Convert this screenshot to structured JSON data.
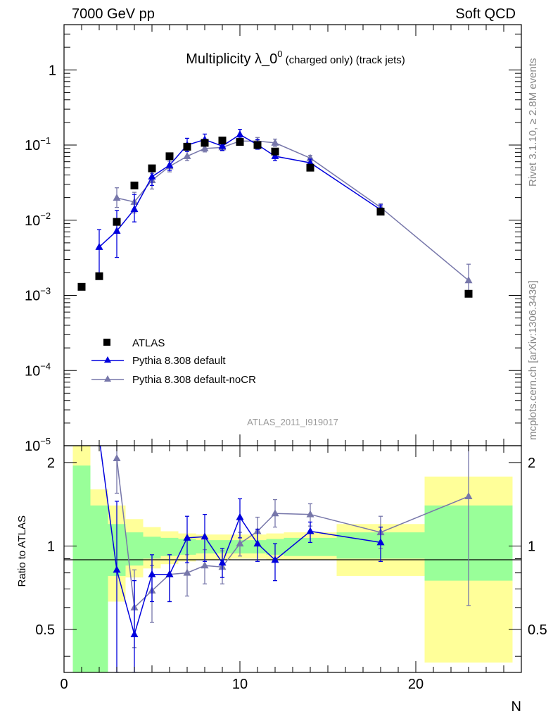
{
  "header": {
    "left": "7000 GeV pp",
    "right": "Soft QCD"
  },
  "side_text": {
    "rivet": "Rivet 3.1.10, ≥ 2.8M events",
    "mcplots": "mcplots.cern.ch [arXiv:1306.3436]"
  },
  "watermark": "ATLAS_2011_I919017",
  "chart_data": {
    "type": "scatter",
    "title_main": "Multiplicity λ_0",
    "title_sup": "0",
    "title_suffix": " (charged only) (track jets)",
    "xlabel": "N",
    "ylabel_ratio": "Ratio to ATLAS",
    "xlim": [
      0,
      26
    ],
    "ylim_main": [
      1e-05,
      4
    ],
    "yscale_main": "log",
    "ylim_ratio": [
      0.35,
      2.3
    ],
    "x_ticks": [
      "0",
      "10",
      "20"
    ],
    "y_ticks_main": [
      {
        "base": "10",
        "exp": "−5",
        "v": 1e-05
      },
      {
        "base": "10",
        "exp": "−4",
        "v": 0.0001
      },
      {
        "base": "10",
        "exp": "−3",
        "v": 0.001
      },
      {
        "base": "10",
        "exp": "−2",
        "v": 0.01
      },
      {
        "base": "10",
        "exp": "−1",
        "v": 0.1
      },
      {
        "base": "1",
        "exp": "",
        "v": 1
      }
    ],
    "y_ticks_ratio": [
      "0.5",
      "1",
      "2"
    ],
    "legend_position": "bottom-left",
    "series": [
      {
        "name": "ATLAS",
        "color": "#000000",
        "marker": "square",
        "points": [
          {
            "x": 1,
            "y": 0.0013
          },
          {
            "x": 2,
            "y": 0.0018
          },
          {
            "x": 3,
            "y": 0.0095
          },
          {
            "x": 4,
            "y": 0.029
          },
          {
            "x": 5,
            "y": 0.049
          },
          {
            "x": 6,
            "y": 0.071
          },
          {
            "x": 7,
            "y": 0.095
          },
          {
            "x": 8,
            "y": 0.107
          },
          {
            "x": 9,
            "y": 0.115
          },
          {
            "x": 10,
            "y": 0.11
          },
          {
            "x": 11,
            "y": 0.1
          },
          {
            "x": 12,
            "y": 0.082
          },
          {
            "x": 14,
            "y": 0.05
          },
          {
            "x": 18,
            "y": 0.013
          },
          {
            "x": 23,
            "y": 0.00105
          }
        ]
      },
      {
        "name": "Pythia 8.308 default",
        "color": "#0000dd",
        "marker": "triangle",
        "points": [
          {
            "x": 2,
            "y": 0.0044,
            "lo": 0.0018,
            "hi": 0.0075
          },
          {
            "x": 3,
            "y": 0.0072,
            "lo": 0.0032,
            "hi": 0.0135
          },
          {
            "x": 4,
            "y": 0.014,
            "lo": 0.0095,
            "hi": 0.022
          },
          {
            "x": 5,
            "y": 0.038,
            "lo": 0.029,
            "hi": 0.045
          },
          {
            "x": 6,
            "y": 0.054,
            "lo": 0.046,
            "hi": 0.065
          },
          {
            "x": 7,
            "y": 0.1,
            "lo": 0.082,
            "hi": 0.123
          },
          {
            "x": 8,
            "y": 0.118,
            "lo": 0.1,
            "hi": 0.14
          },
          {
            "x": 9,
            "y": 0.097,
            "lo": 0.085,
            "hi": 0.112
          },
          {
            "x": 10,
            "y": 0.138,
            "lo": 0.118,
            "hi": 0.162
          },
          {
            "x": 11,
            "y": 0.101,
            "lo": 0.088,
            "hi": 0.118
          },
          {
            "x": 12,
            "y": 0.071,
            "lo": 0.062,
            "hi": 0.082
          },
          {
            "x": 14,
            "y": 0.058,
            "lo": 0.052,
            "hi": 0.065
          },
          {
            "x": 18,
            "y": 0.0138,
            "lo": 0.0118,
            "hi": 0.016
          }
        ]
      },
      {
        "name": "Pythia 8.308 default-noCR",
        "color": "#7777aa",
        "marker": "triangle",
        "points": [
          {
            "x": 3,
            "y": 0.0198,
            "lo": 0.0148,
            "hi": 0.027
          },
          {
            "x": 4,
            "y": 0.0175,
            "lo": 0.0125,
            "hi": 0.0235
          },
          {
            "x": 5,
            "y": 0.034,
            "lo": 0.026,
            "hi": 0.042
          },
          {
            "x": 6,
            "y": 0.052,
            "lo": 0.044,
            "hi": 0.061
          },
          {
            "x": 7,
            "y": 0.071,
            "lo": 0.062,
            "hi": 0.082
          },
          {
            "x": 8,
            "y": 0.09,
            "lo": 0.081,
            "hi": 0.1
          },
          {
            "x": 9,
            "y": 0.093,
            "lo": 0.084,
            "hi": 0.103
          },
          {
            "x": 10,
            "y": 0.113,
            "lo": 0.102,
            "hi": 0.124
          },
          {
            "x": 11,
            "y": 0.113,
            "lo": 0.1,
            "hi": 0.126
          },
          {
            "x": 12,
            "y": 0.107,
            "lo": 0.096,
            "hi": 0.12
          },
          {
            "x": 14,
            "y": 0.067,
            "lo": 0.061,
            "hi": 0.073
          },
          {
            "x": 18,
            "y": 0.0148,
            "lo": 0.0132,
            "hi": 0.0166
          },
          {
            "x": 23,
            "y": 0.00158,
            "lo": 0.00105,
            "hi": 0.0026
          }
        ]
      }
    ],
    "ratio_series": [
      {
        "name": "Pythia 8.308 default",
        "color": "#0000dd",
        "points": [
          {
            "x": 2,
            "y": 2.45,
            "lo": 2.3,
            "hi": 2.45
          },
          {
            "x": 3,
            "y": 0.82,
            "lo": 0.35,
            "hi": 1.45
          },
          {
            "x": 4,
            "y": 0.48,
            "lo": 0.35,
            "hi": 0.75
          },
          {
            "x": 5,
            "y": 0.79,
            "lo": 0.63,
            "hi": 0.93
          },
          {
            "x": 6,
            "y": 0.79,
            "lo": 0.63,
            "hi": 0.93
          },
          {
            "x": 7,
            "y": 1.07,
            "lo": 0.87,
            "hi": 1.28
          },
          {
            "x": 8,
            "y": 1.08,
            "lo": 0.88,
            "hi": 1.3
          },
          {
            "x": 9,
            "y": 0.87,
            "lo": 0.77,
            "hi": 0.98
          },
          {
            "x": 10,
            "y": 1.27,
            "lo": 1.07,
            "hi": 1.48
          },
          {
            "x": 11,
            "y": 1.02,
            "lo": 0.88,
            "hi": 1.15
          },
          {
            "x": 12,
            "y": 0.89,
            "lo": 0.75,
            "hi": 1.02
          },
          {
            "x": 14,
            "y": 1.13,
            "lo": 1.03,
            "hi": 1.22
          },
          {
            "x": 18,
            "y": 1.03,
            "lo": 0.88,
            "hi": 1.17
          }
        ]
      },
      {
        "name": "Pythia 8.308 default-noCR",
        "color": "#7777aa",
        "points": [
          {
            "x": 3,
            "y": 2.07,
            "lo": 1.55,
            "hi": 2.45
          },
          {
            "x": 4,
            "y": 0.6,
            "lo": 0.43,
            "hi": 0.82
          },
          {
            "x": 5,
            "y": 0.69,
            "lo": 0.53,
            "hi": 0.85
          },
          {
            "x": 6,
            "y": 0.79,
            "lo": 0.63,
            "hi": 0.93
          },
          {
            "x": 7,
            "y": 0.8,
            "lo": 0.66,
            "hi": 0.93
          },
          {
            "x": 8,
            "y": 0.85,
            "lo": 0.73,
            "hi": 0.97
          },
          {
            "x": 9,
            "y": 0.84,
            "lo": 0.73,
            "hi": 0.96
          },
          {
            "x": 10,
            "y": 1.02,
            "lo": 0.92,
            "hi": 1.12
          },
          {
            "x": 11,
            "y": 1.13,
            "lo": 1.0,
            "hi": 1.27
          },
          {
            "x": 12,
            "y": 1.31,
            "lo": 1.17,
            "hi": 1.47
          },
          {
            "x": 14,
            "y": 1.3,
            "lo": 1.18,
            "hi": 1.42
          },
          {
            "x": 18,
            "y": 1.12,
            "lo": 0.98,
            "hi": 1.28
          },
          {
            "x": 23,
            "y": 1.51,
            "lo": 0.61,
            "hi": 2.3
          }
        ]
      }
    ],
    "uncertainty_bands": {
      "inner_color": "#99ff99",
      "outer_color": "#ffff99",
      "bins": [
        {
          "x0": 0.5,
          "x1": 1.5,
          "in_lo": 0.35,
          "in_hi": 1.95,
          "out_lo": 0.35,
          "out_hi": 2.3
        },
        {
          "x0": 1.5,
          "x1": 2.5,
          "in_lo": 0.35,
          "in_hi": 1.4,
          "out_lo": 0.35,
          "out_hi": 1.6
        },
        {
          "x0": 2.5,
          "x1": 3.5,
          "in_lo": 0.78,
          "in_hi": 1.2,
          "out_lo": 0.63,
          "out_hi": 1.4
        },
        {
          "x0": 3.5,
          "x1": 4.5,
          "in_lo": 0.85,
          "in_hi": 1.12,
          "out_lo": 0.77,
          "out_hi": 1.25
        },
        {
          "x0": 4.5,
          "x1": 5.5,
          "in_lo": 0.9,
          "in_hi": 1.08,
          "out_lo": 0.83,
          "out_hi": 1.17
        },
        {
          "x0": 5.5,
          "x1": 6.5,
          "in_lo": 0.92,
          "in_hi": 1.07,
          "out_lo": 0.86,
          "out_hi": 1.13
        },
        {
          "x0": 6.5,
          "x1": 7.5,
          "in_lo": 0.93,
          "in_hi": 1.06,
          "out_lo": 0.88,
          "out_hi": 1.11
        },
        {
          "x0": 7.5,
          "x1": 8.5,
          "in_lo": 0.94,
          "in_hi": 1.05,
          "out_lo": 0.89,
          "out_hi": 1.1
        },
        {
          "x0": 8.5,
          "x1": 9.5,
          "in_lo": 0.94,
          "in_hi": 1.05,
          "out_lo": 0.89,
          "out_hi": 1.1
        },
        {
          "x0": 9.5,
          "x1": 10.5,
          "in_lo": 0.94,
          "in_hi": 1.05,
          "out_lo": 0.9,
          "out_hi": 1.1
        },
        {
          "x0": 10.5,
          "x1": 11.5,
          "in_lo": 0.94,
          "in_hi": 1.05,
          "out_lo": 0.9,
          "out_hi": 1.1
        },
        {
          "x0": 11.5,
          "x1": 12.5,
          "in_lo": 0.93,
          "in_hi": 1.06,
          "out_lo": 0.89,
          "out_hi": 1.11
        },
        {
          "x0": 12.5,
          "x1": 15.5,
          "in_lo": 0.92,
          "in_hi": 1.07,
          "out_lo": 0.89,
          "out_hi": 1.12
        },
        {
          "x0": 15.5,
          "x1": 20.5,
          "in_lo": 0.9,
          "in_hi": 1.12,
          "out_lo": 0.78,
          "out_hi": 1.2
        },
        {
          "x0": 20.5,
          "x1": 25.5,
          "in_lo": 0.75,
          "in_hi": 1.4,
          "out_lo": 0.38,
          "out_hi": 1.78
        }
      ]
    }
  }
}
